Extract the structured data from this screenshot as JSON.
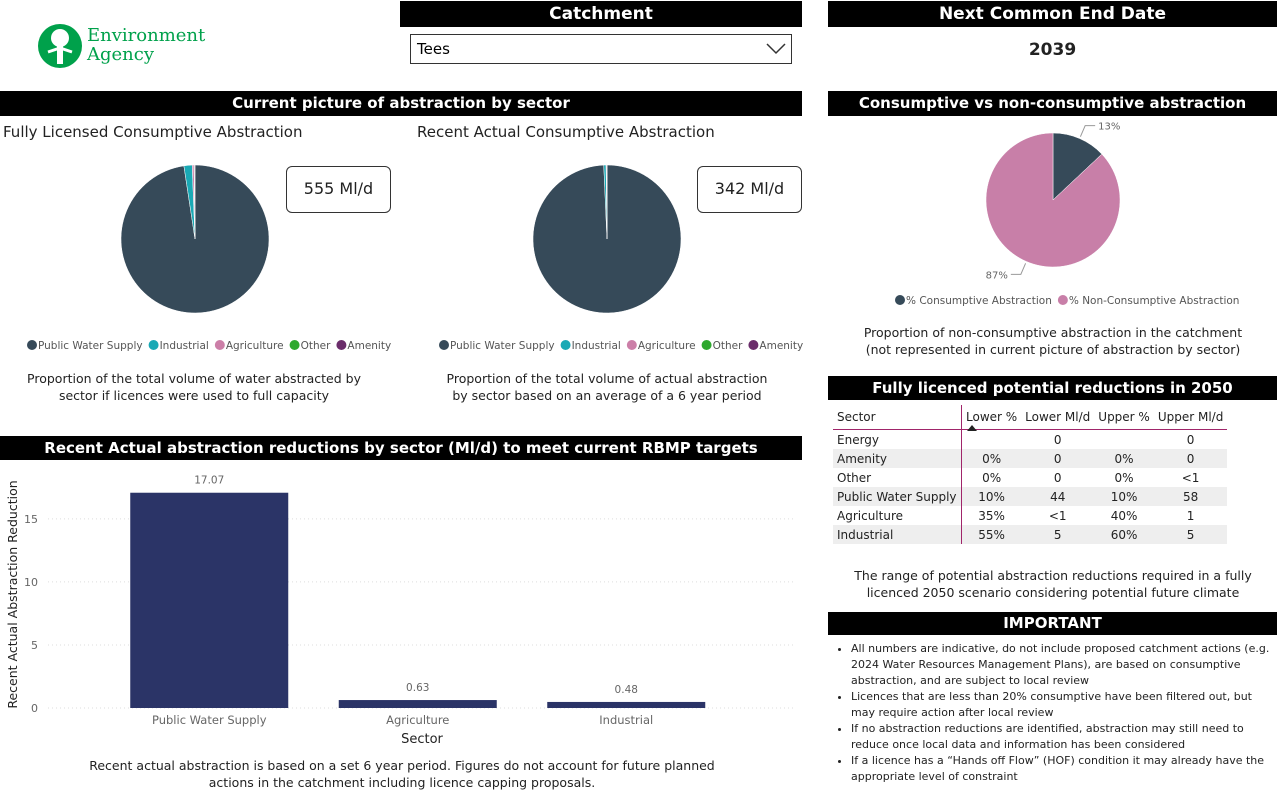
{
  "header": {
    "logo": [
      "Environment",
      "Agency"
    ],
    "catchment_label": "Catchment",
    "catchment_value": "Tees",
    "end_date_label": "Next Common End Date",
    "end_date_value": "2039"
  },
  "sections": {
    "abstraction": "Current picture of abstraction by sector",
    "potential": "Fully licenced potential reductions in 2050",
    "important": "IMPORTANT"
  },
  "cards": [
    "555 Ml/d",
    "342 Ml/d"
  ],
  "captions": {
    "licensed": "Proportion of the total volume of water abstracted by sector if licences were used to full capacity",
    "actual": "Proportion of the total volume of actual abstraction by sector based on an average of a 6 year period",
    "consumptive": "Proportion of non-consumptive abstraction in the catchment (not represented in current picture of abstraction by sector)",
    "reductions": "Recent actual abstraction is based on a set 6 year period. Figures do not account for future planned actions in the catchment including licence capping proposals.",
    "potential": "The range of potential abstraction reductions required in a fully licenced 2050 scenario considering potential future climate"
  },
  "chart_data": [
    {
      "type": "pie",
      "title": "Fully Licensed Consumptive Abstraction",
      "categories": [
        "Public Water Supply",
        "Industrial",
        "Agriculture",
        "Other",
        "Amenity"
      ],
      "values": [
        97.6,
        1.8,
        0.4,
        0.1,
        0.1
      ],
      "colors": [
        "#364a59",
        "#1aa9b5",
        "#cc7fa8",
        "#2ea82e",
        "#6b2d6b"
      ]
    },
    {
      "type": "pie",
      "title": "Recent Actual Consumptive Abstraction",
      "categories": [
        "Public Water Supply",
        "Industrial",
        "Agriculture",
        "Other",
        "Amenity"
      ],
      "values": [
        99.3,
        0.5,
        0.15,
        0.03,
        0.02
      ],
      "colors": [
        "#364a59",
        "#1aa9b5",
        "#cc7fa8",
        "#2ea82e",
        "#6b2d6b"
      ]
    },
    {
      "type": "pie",
      "title": "Consumptive vs non-consumptive abstraction",
      "categories": [
        "% Consumptive Abstraction",
        "% Non-Consumptive Abstraction"
      ],
      "values": [
        13,
        87
      ],
      "value_labels": [
        "13%",
        "87%"
      ],
      "colors": [
        "#364a59",
        "#c87fa8"
      ]
    },
    {
      "type": "bar",
      "title": "Recent Actual abstraction reductions by sector (Ml/d) to meet current RBMP targets",
      "categories": [
        "Public Water Supply",
        "Agriculture",
        "Industrial"
      ],
      "values": [
        17.07,
        0.63,
        0.48
      ],
      "color": "#2b3467",
      "xlabel": "Sector",
      "ylabel": "Recent Actual Abstraction Reduction",
      "ylim": [
        0,
        18
      ],
      "yticks": [
        0,
        5,
        10,
        15
      ],
      "grid": true
    }
  ],
  "table": {
    "header": [
      "Sector",
      "Lower %",
      "Lower Ml/d",
      "Upper %",
      "Upper Ml/d"
    ],
    "rows": [
      [
        "Energy",
        null,
        "0",
        null,
        "0"
      ],
      [
        "Amenity",
        "0%",
        "0",
        "0%",
        "0"
      ],
      [
        "Other",
        "0%",
        "0",
        "0%",
        "<1"
      ],
      [
        "Public Water Supply",
        "10%",
        "44",
        "10%",
        "58"
      ],
      [
        "Agriculture",
        "35%",
        "<1",
        "40%",
        "1"
      ],
      [
        "Industrial",
        "55%",
        "5",
        "60%",
        "5"
      ]
    ]
  },
  "important_notes": [
    "All numbers are indicative, do not include proposed catchment actions (e.g. 2024 Water Resources Management Plans), are based on consumptive abstraction, and are subject to local review",
    "Licences that are less than 20% consumptive have been filtered out, but may require action after local review",
    "If no abstraction reductions are identified, abstraction may still need to reduce once local data and information has been considered",
    "If a licence has a “Hands off Flow” (HOF) condition it may already have the appropriate level of constraint"
  ]
}
